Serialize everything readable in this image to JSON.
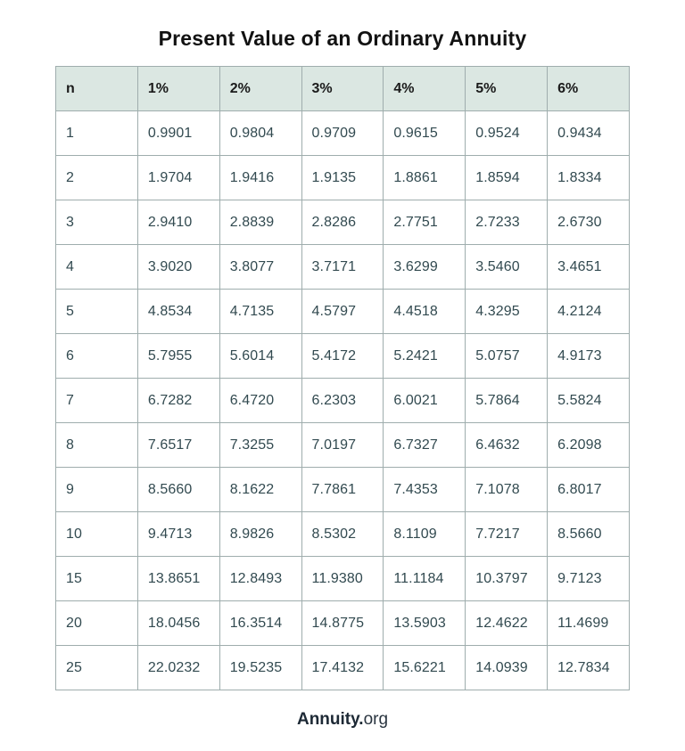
{
  "title": "Present Value of an Ordinary Annuity",
  "chart_data": {
    "type": "table",
    "title": "Present Value of an Ordinary Annuity",
    "columns": [
      "n",
      "1%",
      "2%",
      "3%",
      "4%",
      "5%",
      "6%"
    ],
    "rows": [
      [
        "1",
        "0.9901",
        "0.9804",
        "0.9709",
        "0.9615",
        "0.9524",
        "0.9434"
      ],
      [
        "2",
        "1.9704",
        "1.9416",
        "1.9135",
        "1.8861",
        "1.8594",
        "1.8334"
      ],
      [
        "3",
        "2.9410",
        "2.8839",
        "2.8286",
        "2.7751",
        "2.7233",
        "2.6730"
      ],
      [
        "4",
        "3.9020",
        "3.8077",
        "3.7171",
        "3.6299",
        "3.5460",
        "3.4651"
      ],
      [
        "5",
        "4.8534",
        "4.7135",
        "4.5797",
        "4.4518",
        "4.3295",
        "4.2124"
      ],
      [
        "6",
        "5.7955",
        "5.6014",
        "5.4172",
        "5.2421",
        "5.0757",
        "4.9173"
      ],
      [
        "7",
        "6.7282",
        "6.4720",
        "6.2303",
        "6.0021",
        "5.7864",
        "5.5824"
      ],
      [
        "8",
        "7.6517",
        "7.3255",
        "7.0197",
        "6.7327",
        "6.4632",
        "6.2098"
      ],
      [
        "9",
        "8.5660",
        "8.1622",
        "7.7861",
        "7.4353",
        "7.1078",
        "6.8017"
      ],
      [
        "10",
        "9.4713",
        "8.9826",
        "8.5302",
        "8.1109",
        "7.7217",
        "8.5660"
      ],
      [
        "15",
        "13.8651",
        "12.8493",
        "11.9380",
        "11.1184",
        "10.3797",
        "9.7123"
      ],
      [
        "20",
        "18.0456",
        "16.3514",
        "14.8775",
        "13.5903",
        "12.4622",
        "11.4699"
      ],
      [
        "25",
        "22.0232",
        "19.5235",
        "17.4132",
        "15.6221",
        "14.0939",
        "12.7834"
      ]
    ]
  },
  "footer": {
    "brand_bold": "Annuity.",
    "brand_light": "org"
  },
  "colors": {
    "header_bg": "#dbe7e2",
    "border": "#9fadad",
    "cell_text": "#324a50",
    "header_text": "#1b1b1b",
    "title_text": "#121212",
    "brand_text": "#1d2935",
    "page_bg": "#ffffff"
  }
}
